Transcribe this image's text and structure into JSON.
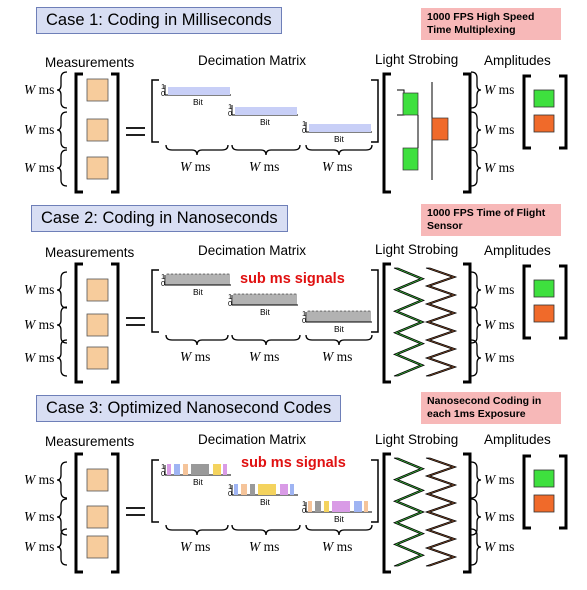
{
  "cases": [
    {
      "title": "Case 1:  Coding in Milliseconds",
      "note": "1000 FPS High Speed Time Multiplexing",
      "headers": {
        "measurements": "Measurements",
        "decimation": "Decimation Matrix",
        "strobing": "Light Strobing",
        "amplitudes": "Amplitudes"
      },
      "w_label": "W ms",
      "bit_label": "Bit",
      "sub_label": ""
    },
    {
      "title": "Case 2: Coding in Nanoseconds",
      "note": "1000 FPS Time of Flight Sensor",
      "headers": {
        "measurements": "Measurements",
        "decimation": "Decimation Matrix",
        "strobing": "Light Strobing",
        "amplitudes": "Amplitudes"
      },
      "w_label": "W ms",
      "bit_label": "Bit",
      "sub_label": "sub ms signals"
    },
    {
      "title": "Case 3: Optimized Nanosecond Codes",
      "note": "Nanosecond Coding in each 1ms Exposure",
      "headers": {
        "measurements": "Measurements",
        "decimation": "Decimation Matrix",
        "strobing": "Light Strobing",
        "amplitudes": "Amplitudes"
      },
      "w_label": "W ms",
      "bit_label": "Bit",
      "sub_label": "sub ms signals"
    }
  ],
  "axis_tick_one": "1",
  "axis_tick_zero": "0",
  "colors": {
    "measure_box": "#f7cc9c",
    "amp_green": "#3ee03e",
    "amp_orange": "#f06a2a",
    "title_bg": "#d8def3",
    "note_bg": "#f7b8b8",
    "code_bar": "#c8cff7",
    "sub_red": "#e01010"
  }
}
